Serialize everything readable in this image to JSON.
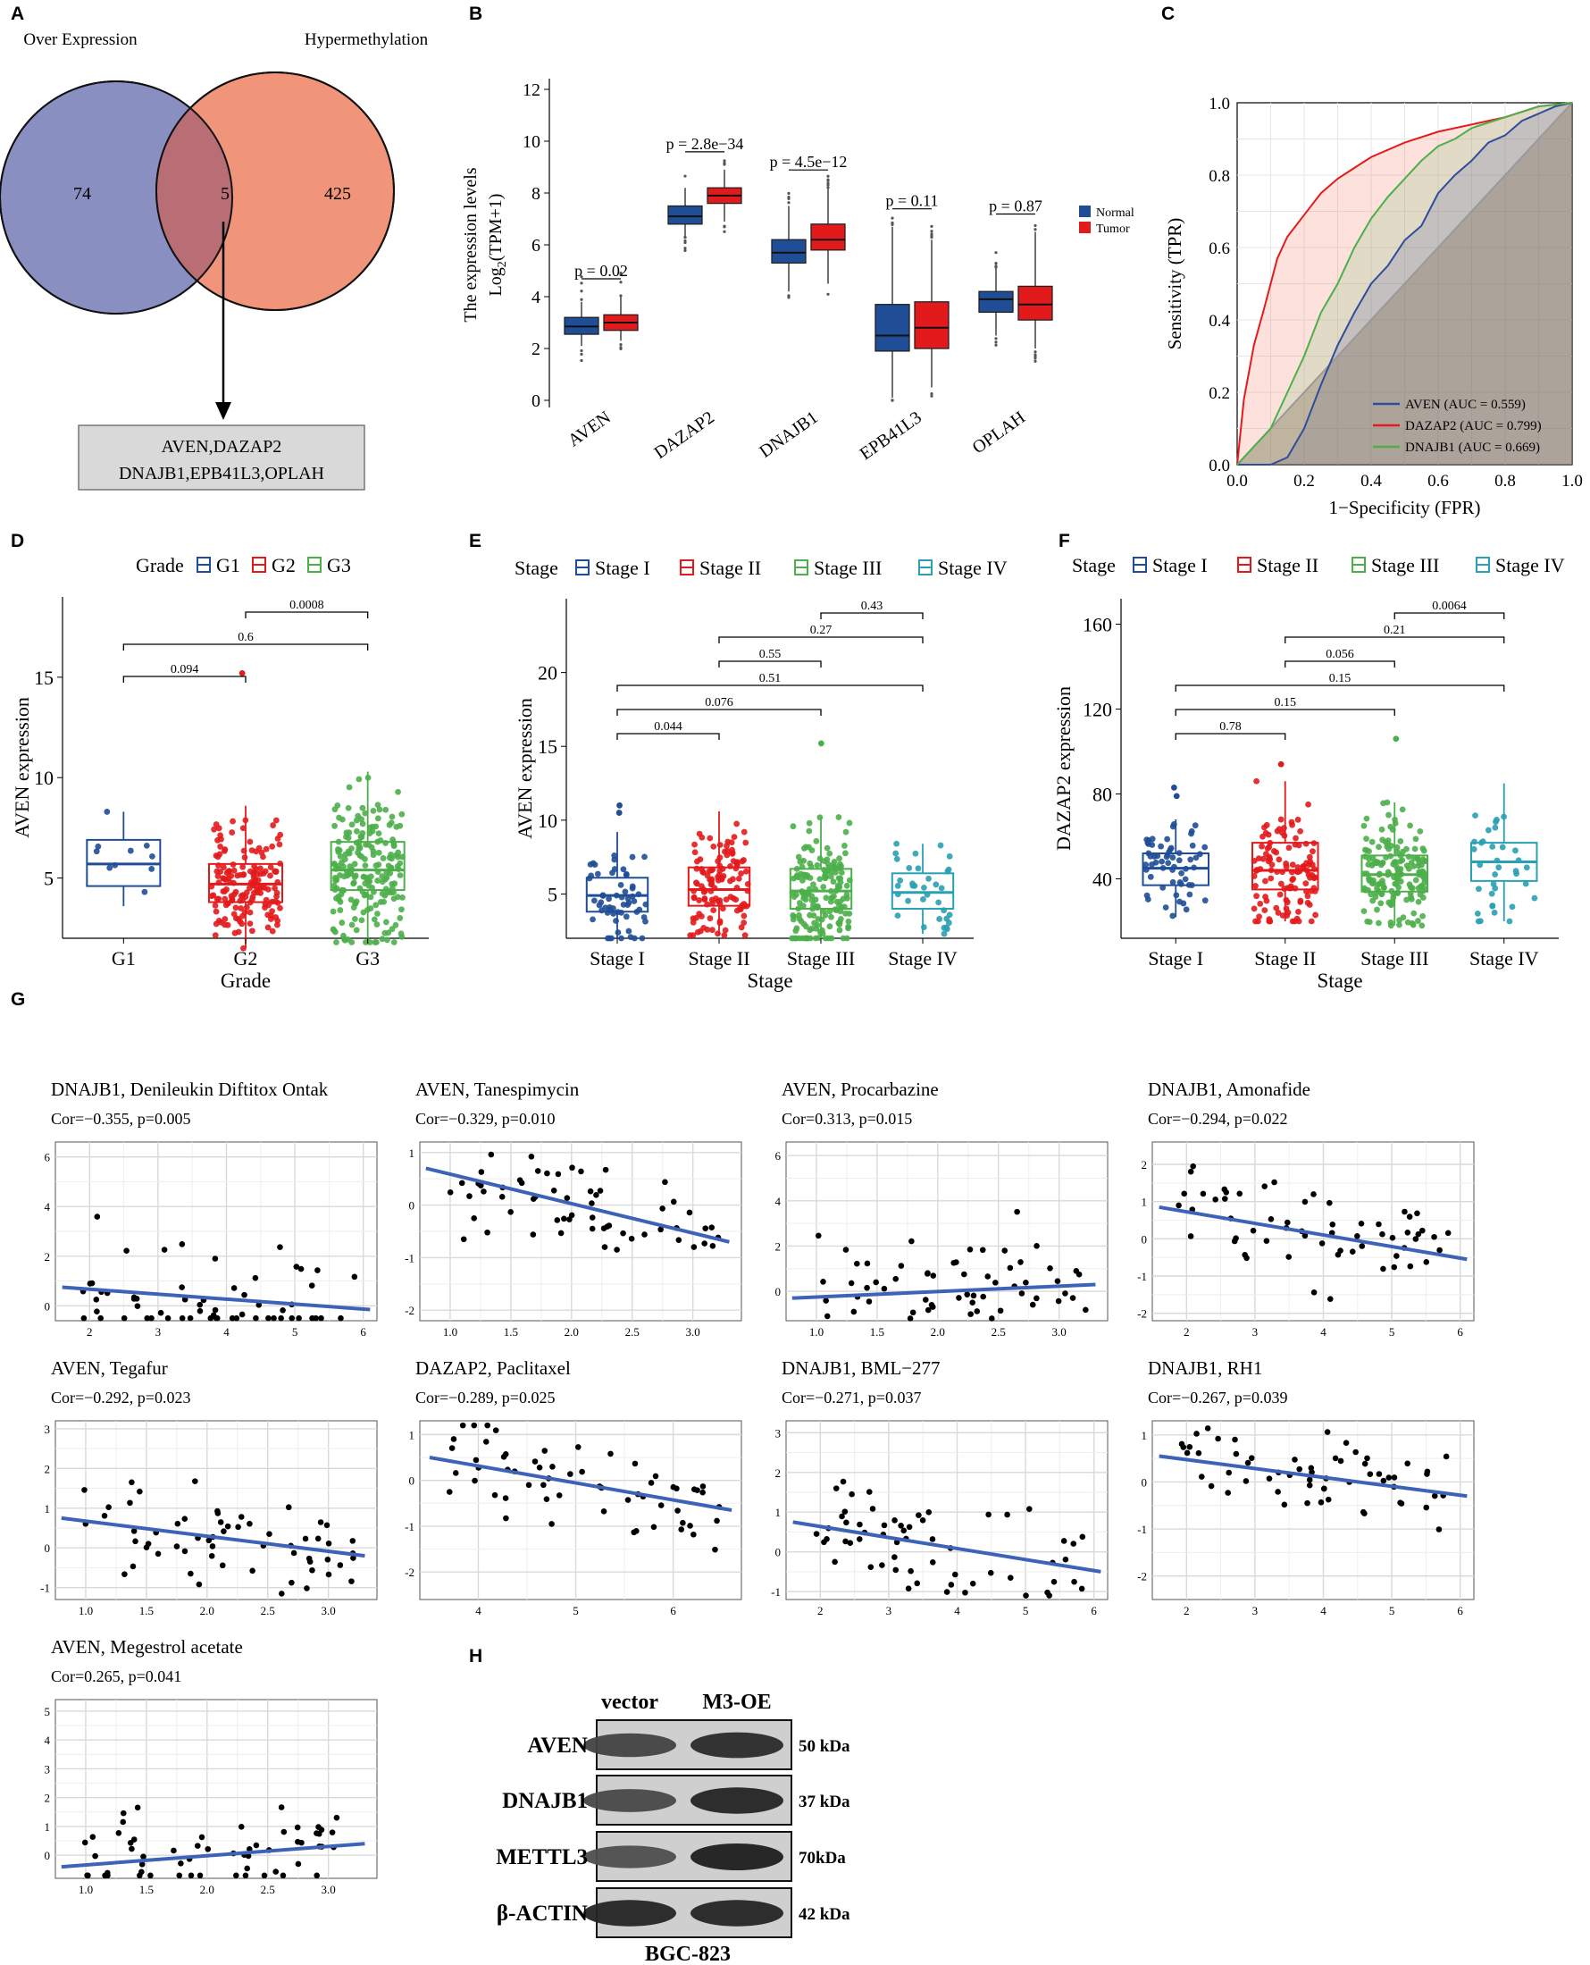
{
  "panel_letters": [
    "A",
    "B",
    "C",
    "D",
    "E",
    "F",
    "G",
    "H"
  ],
  "chart_data": [
    {
      "id": "A",
      "type": "venn",
      "sets": [
        {
          "label": "Over Expression",
          "only": 74,
          "color": "#8a8fc2"
        },
        {
          "label": "Hypermethylation",
          "only": 425,
          "color": "#f0957a"
        }
      ],
      "intersection": 5,
      "overlap_color": "#b96e75",
      "genes_box": [
        "AVEN,DAZAP2",
        "DNAJB1,EPB41L3,OPLAH"
      ]
    },
    {
      "id": "B",
      "type": "box",
      "ylabel": "The expression levels",
      "ylabel2": "Log2(TPM+1)",
      "ylim": [
        0,
        12
      ],
      "yticks": [
        0,
        2,
        4,
        6,
        8,
        10,
        12
      ],
      "legend": [
        "Normal",
        "Tumor"
      ],
      "colors": [
        "#1f4e96",
        "#e31a1c"
      ],
      "categories": [
        "AVEN",
        "DAZAP2",
        "DNAJB1",
        "EPB41L3",
        "OPLAH"
      ],
      "pvalues": [
        "p = 0.02",
        "p = 2.8e−34",
        "p = 4.5e−12",
        "p = 0.11",
        "p = 0.87"
      ],
      "boxes": [
        {
          "normal": [
            2.1,
            2.55,
            2.85,
            3.2,
            3.8
          ],
          "tumor": [
            2.3,
            2.7,
            3.0,
            3.3,
            4.0
          ]
        },
        {
          "normal": [
            6.3,
            6.8,
            7.1,
            7.5,
            8.2
          ],
          "tumor": [
            6.9,
            7.6,
            7.9,
            8.2,
            8.9
          ]
        },
        {
          "normal": [
            4.2,
            5.3,
            5.7,
            6.2,
            7.5
          ],
          "tumor": [
            4.5,
            5.8,
            6.2,
            6.8,
            8.2
          ]
        },
        {
          "normal": [
            0.1,
            1.9,
            2.5,
            3.7,
            6.7
          ],
          "tumor": [
            0.5,
            2.0,
            2.8,
            3.8,
            6.2
          ]
        },
        {
          "normal": [
            2.5,
            3.4,
            3.9,
            4.2,
            5.1
          ],
          "tumor": [
            2.0,
            3.1,
            3.7,
            4.4,
            6.5
          ]
        }
      ]
    },
    {
      "id": "C",
      "type": "line",
      "xlabel": "1−Specificity (FPR)",
      "ylabel": "Sensitivity (TPR)",
      "xlim": [
        0,
        1
      ],
      "ylim": [
        0,
        1
      ],
      "ticks": [
        0.0,
        0.2,
        0.4,
        0.6,
        0.8,
        1.0
      ],
      "tick_labels": [
        "0.0",
        "0.2",
        "0.4",
        "0.6",
        "0.8",
        "1.0"
      ],
      "series": [
        {
          "name": "AVEN (AUC = 0.559)",
          "color": "#2e4e9b",
          "x": [
            0,
            0.1,
            0.15,
            0.2,
            0.25,
            0.3,
            0.35,
            0.4,
            0.45,
            0.5,
            0.55,
            0.6,
            0.65,
            0.7,
            0.75,
            0.8,
            0.85,
            0.9,
            0.95,
            1.0
          ],
          "y": [
            0,
            0.0,
            0.02,
            0.1,
            0.22,
            0.33,
            0.42,
            0.5,
            0.55,
            0.62,
            0.66,
            0.75,
            0.8,
            0.84,
            0.89,
            0.91,
            0.95,
            0.97,
            0.99,
            1.0
          ]
        },
        {
          "name": "DAZAP2 (AUC = 0.799)",
          "color": "#e41a1c",
          "x": [
            0,
            0.02,
            0.05,
            0.08,
            0.1,
            0.12,
            0.15,
            0.2,
            0.25,
            0.3,
            0.35,
            0.4,
            0.5,
            0.6,
            0.7,
            0.8,
            0.9,
            1.0
          ],
          "y": [
            0,
            0.18,
            0.33,
            0.43,
            0.5,
            0.57,
            0.63,
            0.69,
            0.75,
            0.79,
            0.82,
            0.85,
            0.89,
            0.92,
            0.94,
            0.96,
            0.99,
            1.0
          ]
        },
        {
          "name": "DNAJB1 (AUC = 0.669)",
          "color": "#4daf4a",
          "x": [
            0,
            0.1,
            0.15,
            0.2,
            0.25,
            0.3,
            0.35,
            0.4,
            0.45,
            0.5,
            0.55,
            0.6,
            0.65,
            0.7,
            0.8,
            0.9,
            1.0
          ],
          "y": [
            0,
            0.1,
            0.2,
            0.3,
            0.42,
            0.5,
            0.6,
            0.68,
            0.74,
            0.79,
            0.84,
            0.88,
            0.9,
            0.93,
            0.96,
            0.99,
            1.0
          ]
        }
      ]
    },
    {
      "id": "D",
      "type": "box",
      "legend_title": "Grade",
      "legend": [
        "G1",
        "G2",
        "G3"
      ],
      "colors": [
        "#1f4e96",
        "#e31a1c",
        "#4daf4a"
      ],
      "xlabel": "Grade",
      "ylabel": "AVEN expression",
      "ylim": [
        2,
        19
      ],
      "yticks": [
        5,
        10,
        15
      ],
      "categories": [
        "G1",
        "G2",
        "G3"
      ],
      "boxes": [
        [
          3.6,
          4.6,
          5.7,
          6.9,
          8.3
        ],
        [
          1.5,
          3.8,
          4.7,
          5.7,
          8.6
        ],
        [
          1.8,
          4.4,
          5.4,
          6.8,
          10.3
        ]
      ],
      "point_counts": [
        10,
        160,
        210
      ],
      "outliers": [
        [],
        [
          15.2
        ],
        []
      ],
      "comparisons": [
        {
          "a": 2,
          "b": 3,
          "p": "0.0008"
        },
        {
          "a": 1,
          "b": 3,
          "p": "0.6"
        },
        {
          "a": 1,
          "b": 2,
          "p": "0.094"
        }
      ]
    },
    {
      "id": "E",
      "type": "box",
      "legend_title": "Stage",
      "legend": [
        "Stage I",
        "Stage II",
        "Stage III",
        "Stage IV"
      ],
      "colors": [
        "#1f4e96",
        "#e31a1c",
        "#4daf4a",
        "#2aa0b4"
      ],
      "xlabel": "Stage",
      "ylabel": "AVEN expression",
      "ylim": [
        2,
        25
      ],
      "yticks": [
        5,
        10,
        15,
        20
      ],
      "categories": [
        "Stage I",
        "Stage II",
        "Stage III",
        "Stage IV"
      ],
      "boxes": [
        [
          2.0,
          3.8,
          4.9,
          6.1,
          9.2
        ],
        [
          2.2,
          4.2,
          5.3,
          6.8,
          10.6
        ],
        [
          2.0,
          4.0,
          5.2,
          6.7,
          10.2
        ],
        [
          2.3,
          4.0,
          5.1,
          6.4,
          8.4
        ]
      ],
      "point_counts": [
        60,
        120,
        170,
        35
      ],
      "outliers": [
        [
          11.0,
          10.5
        ],
        [],
        [
          15.2
        ],
        []
      ],
      "comparisons": [
        {
          "a": 3,
          "b": 4,
          "p": "0.43"
        },
        {
          "a": 2,
          "b": 4,
          "p": "0.27"
        },
        {
          "a": 2,
          "b": 3,
          "p": "0.55"
        },
        {
          "a": 1,
          "b": 4,
          "p": "0.51"
        },
        {
          "a": 1,
          "b": 3,
          "p": "0.076"
        },
        {
          "a": 1,
          "b": 2,
          "p": "0.044"
        }
      ]
    },
    {
      "id": "F",
      "type": "box",
      "legend_title": "Stage",
      "legend": [
        "Stage I",
        "Stage II",
        "Stage III",
        "Stage IV"
      ],
      "colors": [
        "#1f4e96",
        "#e31a1c",
        "#4daf4a",
        "#2aa0b4"
      ],
      "xlabel": "Stage",
      "ylabel": "DAZAP2 expression",
      "ylim": [
        12,
        172
      ],
      "yticks": [
        40,
        80,
        120,
        160
      ],
      "categories": [
        "Stage I",
        "Stage II",
        "Stage III",
        "Stage IV"
      ],
      "boxes": [
        [
          22,
          37,
          45,
          52,
          68
        ],
        [
          20,
          35,
          44,
          57,
          86
        ],
        [
          18,
          34,
          42,
          51,
          76
        ],
        [
          20,
          39,
          48,
          57,
          85
        ]
      ],
      "point_counts": [
        60,
        120,
        170,
        35
      ],
      "outliers": [
        [
          83,
          79
        ],
        [
          94
        ],
        [
          106
        ],
        []
      ],
      "comparisons": [
        {
          "a": 3,
          "b": 4,
          "p": "0.0064"
        },
        {
          "a": 2,
          "b": 4,
          "p": "0.21"
        },
        {
          "a": 2,
          "b": 3,
          "p": "0.056"
        },
        {
          "a": 1,
          "b": 4,
          "p": "0.15"
        },
        {
          "a": 1,
          "b": 3,
          "p": "0.15"
        },
        {
          "a": 1,
          "b": 2,
          "p": "0.78"
        }
      ]
    },
    {
      "id": "G",
      "type": "scatter",
      "panels": [
        {
          "title": "DNAJB1, Denileukin Diftitox Ontak",
          "stat": "Cor=−0.355, p=0.005",
          "xlim": [
            1.5,
            6.2
          ],
          "ylim": [
            -0.6,
            6.6
          ],
          "xticks": [
            2,
            3,
            4,
            5,
            6
          ],
          "yticks": [
            0,
            2,
            4,
            6
          ],
          "xtick_labels": [
            "2",
            "3",
            "4",
            "5",
            "6"
          ],
          "line": [
            [
              1.6,
              0.75
            ],
            [
              6.1,
              -0.15
            ]
          ]
        },
        {
          "title": "AVEN, Tanespimycin",
          "stat": "Cor=−0.329, p=0.010",
          "xlim": [
            0.75,
            3.4
          ],
          "ylim": [
            -2.2,
            1.2
          ],
          "xticks": [
            1.0,
            1.5,
            2.0,
            2.5,
            3.0
          ],
          "yticks": [
            -2,
            -1,
            0,
            1
          ],
          "xtick_labels": [
            "1.0",
            "1.5",
            "2.0",
            "2.5",
            "3.0"
          ],
          "line": [
            [
              0.8,
              0.7
            ],
            [
              3.3,
              -0.7
            ]
          ]
        },
        {
          "title": "AVEN, Procarbazine",
          "stat": "Cor=0.313, p=0.015",
          "xlim": [
            0.75,
            3.4
          ],
          "ylim": [
            -1.3,
            6.6
          ],
          "xticks": [
            1.0,
            1.5,
            2.0,
            2.5,
            3.0
          ],
          "yticks": [
            0,
            2,
            4,
            6
          ],
          "xtick_labels": [
            "1.0",
            "1.5",
            "2.0",
            "2.5",
            "3.0"
          ],
          "line": [
            [
              0.8,
              -0.3
            ],
            [
              3.3,
              0.3
            ]
          ]
        },
        {
          "title": "DNAJB1, Amonafide",
          "stat": "Cor=−0.294, p=0.022",
          "xlim": [
            1.5,
            6.2
          ],
          "ylim": [
            -2.2,
            2.6
          ],
          "xticks": [
            2,
            3,
            4,
            5,
            6
          ],
          "yticks": [
            -2,
            -1,
            0,
            1,
            2
          ],
          "xtick_labels": [
            "2",
            "3",
            "4",
            "5",
            "6"
          ],
          "line": [
            [
              1.6,
              0.85
            ],
            [
              6.1,
              -0.55
            ]
          ]
        },
        {
          "title": "AVEN, Tegafur",
          "stat": "Cor=−0.292, p=0.023",
          "xlim": [
            0.75,
            3.4
          ],
          "ylim": [
            -1.3,
            3.2
          ],
          "xticks": [
            1.0,
            1.5,
            2.0,
            2.5,
            3.0
          ],
          "yticks": [
            -1,
            0,
            1,
            2,
            3
          ],
          "xtick_labels": [
            "1.0",
            "1.5",
            "2.0",
            "2.5",
            "3.0"
          ],
          "line": [
            [
              0.8,
              0.75
            ],
            [
              3.3,
              -0.2
            ]
          ]
        },
        {
          "title": "DAZAP2, Paclitaxel",
          "stat": "Cor=−0.289, p=0.025",
          "xlim": [
            3.4,
            6.7
          ],
          "ylim": [
            -2.6,
            1.3
          ],
          "xticks": [
            4,
            5,
            6
          ],
          "yticks": [
            -2,
            -1,
            0,
            1
          ],
          "xtick_labels": [
            "4",
            "5",
            "6"
          ],
          "line": [
            [
              3.5,
              0.5
            ],
            [
              6.6,
              -0.65
            ]
          ]
        },
        {
          "title": "DNAJB1, BML−277",
          "stat": "Cor=−0.271, p=0.037",
          "xlim": [
            1.5,
            6.2
          ],
          "ylim": [
            -1.2,
            3.3
          ],
          "xticks": [
            2,
            3,
            4,
            5,
            6
          ],
          "yticks": [
            -1,
            0,
            1,
            2,
            3
          ],
          "xtick_labels": [
            "2",
            "3",
            "4",
            "5",
            "6"
          ],
          "line": [
            [
              1.6,
              0.75
            ],
            [
              6.1,
              -0.5
            ]
          ]
        },
        {
          "title": "DNAJB1, RH1",
          "stat": "Cor=−0.267, p=0.039",
          "xlim": [
            1.5,
            6.2
          ],
          "ylim": [
            -2.5,
            1.3
          ],
          "xticks": [
            2,
            3,
            4,
            5,
            6
          ],
          "yticks": [
            -2,
            -1,
            0,
            1
          ],
          "xtick_labels": [
            "2",
            "3",
            "4",
            "5",
            "6"
          ],
          "line": [
            [
              1.6,
              0.55
            ],
            [
              6.1,
              -0.3
            ]
          ]
        },
        {
          "title": "AVEN, Megestrol acetate",
          "stat": "Cor=0.265, p=0.041",
          "xlim": [
            0.75,
            3.4
          ],
          "ylim": [
            -0.8,
            5.4
          ],
          "xticks": [
            1.0,
            1.5,
            2.0,
            2.5,
            3.0
          ],
          "yticks": [
            0,
            1,
            2,
            3,
            4,
            5
          ],
          "xtick_labels": [
            "1.0",
            "1.5",
            "2.0",
            "2.5",
            "3.0"
          ],
          "line": [
            [
              0.8,
              -0.4
            ],
            [
              3.3,
              0.4
            ]
          ]
        }
      ]
    },
    {
      "id": "H",
      "type": "western_blot",
      "cell_line": "BGC-823",
      "lanes": [
        "vector",
        "M3-OE"
      ],
      "rows": [
        {
          "protein": "AVEN",
          "size": "50 kDa",
          "intensity": [
            0.7,
            0.9
          ]
        },
        {
          "protein": "DNAJB1",
          "size": "37 kDa",
          "intensity": [
            0.65,
            0.95
          ]
        },
        {
          "protein": "METTL3",
          "size": "70kDa",
          "intensity": [
            0.6,
            1.0
          ]
        },
        {
          "protein": "β-ACTIN",
          "size": "42 kDa",
          "intensity": [
            0.95,
            0.95
          ]
        }
      ]
    }
  ]
}
